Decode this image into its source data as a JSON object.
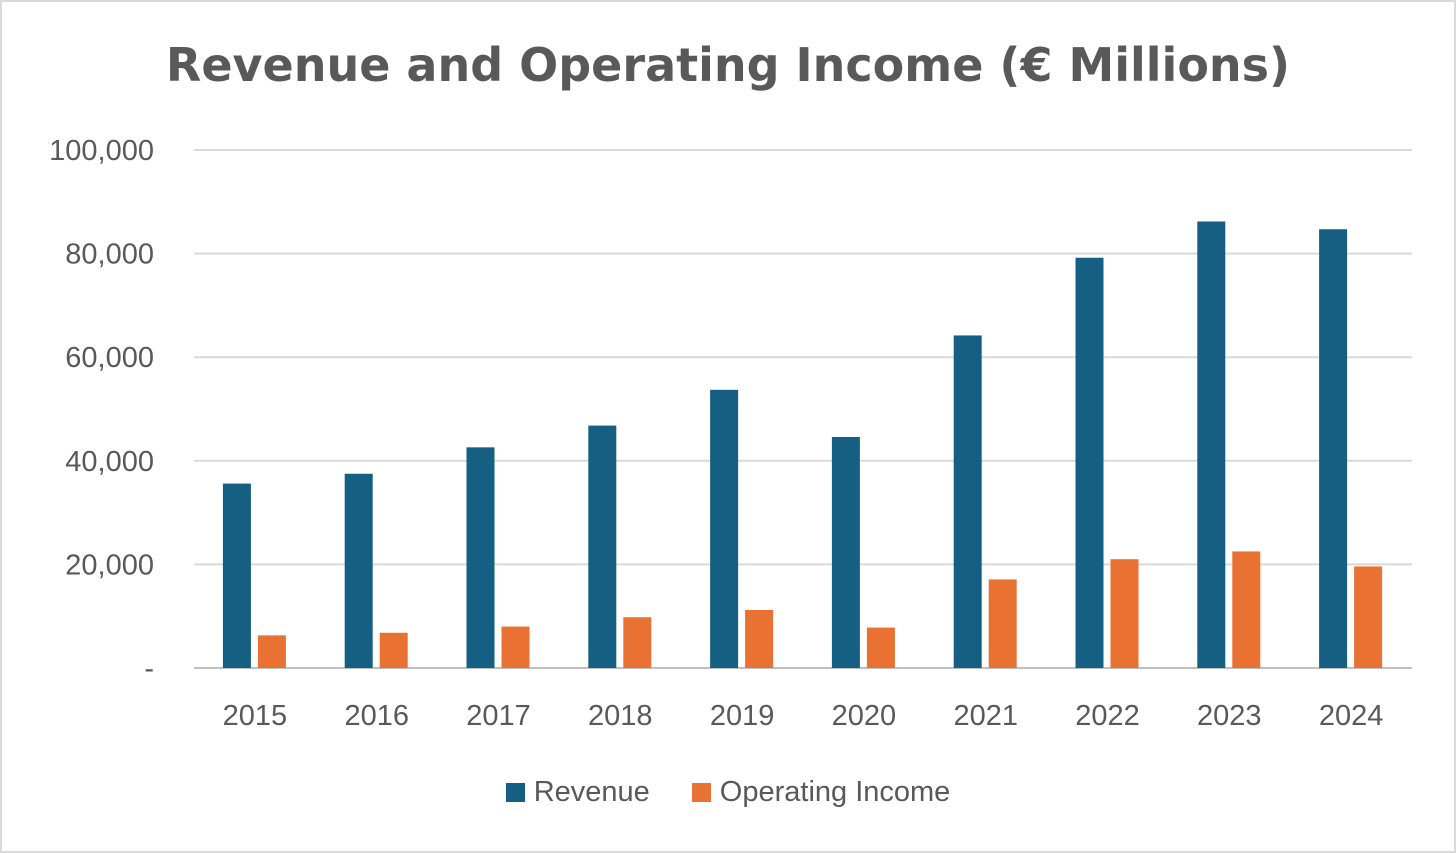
{
  "chart_data": {
    "type": "bar",
    "title": "Revenue and Operating Income (€ Millions)",
    "categories": [
      "2015",
      "2016",
      "2017",
      "2018",
      "2019",
      "2020",
      "2021",
      "2022",
      "2023",
      "2024"
    ],
    "series": [
      {
        "name": "Revenue",
        "color": "#156082",
        "values": [
          35600,
          37500,
          42600,
          46800,
          53700,
          44600,
          64200,
          79200,
          86200,
          84700
        ]
      },
      {
        "name": "Operating Income",
        "color": "#E97132",
        "values": [
          6300,
          6800,
          8000,
          9800,
          11200,
          7800,
          17100,
          21000,
          22500,
          19600
        ]
      }
    ],
    "ylim": [
      0,
      100000
    ],
    "yticks": [
      {
        "value": 0,
        "label": "-"
      },
      {
        "value": 20000,
        "label": "20,000"
      },
      {
        "value": 40000,
        "label": "40,000"
      },
      {
        "value": 60000,
        "label": "60,000"
      },
      {
        "value": 80000,
        "label": "80,000"
      },
      {
        "value": 100000,
        "label": "100,000"
      }
    ],
    "xlabel": "",
    "ylabel": "",
    "grid": true,
    "legend_position": "bottom"
  }
}
